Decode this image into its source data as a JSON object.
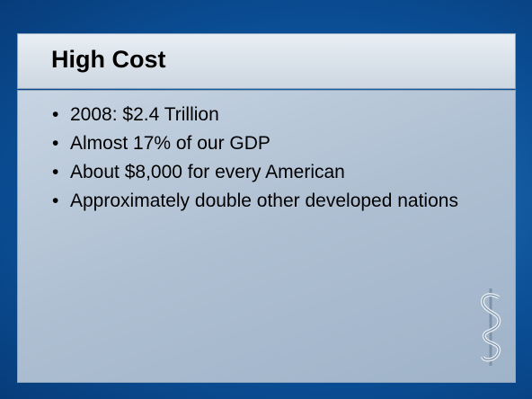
{
  "slide": {
    "title": "High Cost",
    "bullets": [
      "2008:  $2.4 Trillion",
      "Almost 17% of our GDP",
      "About $8,000 for every American",
      "Approximately double other developed nations"
    ]
  }
}
